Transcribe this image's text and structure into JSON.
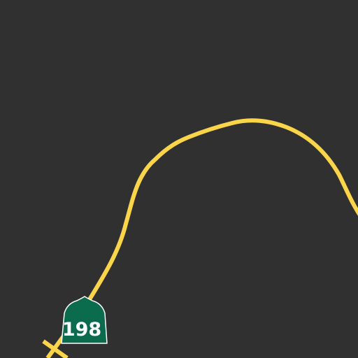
{
  "map": {
    "background_color": "#303030",
    "road_color": "#fad54a",
    "shield": {
      "route_number": "198",
      "icon": "california-state-route-shield-icon",
      "fill_color": "#0b6b4d",
      "outline_color": "#ffffff",
      "text_color": "#ffffff"
    }
  }
}
